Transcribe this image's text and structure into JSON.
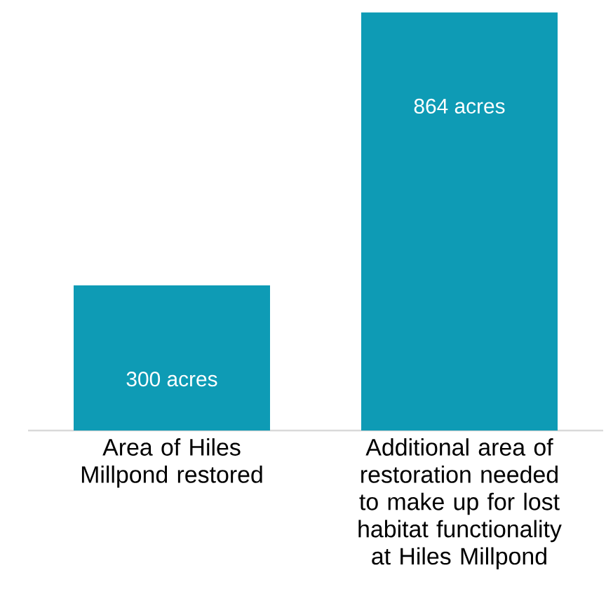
{
  "chart_data": {
    "type": "bar",
    "categories": [
      "Area of Hiles Millpond restored",
      "Additional area of restoration needed to make up for lost habitat functionality at Hiles Millpond"
    ],
    "values": [
      300,
      864
    ],
    "value_labels": [
      "300 acres",
      "864 acres"
    ],
    "color": "#0e9bb5"
  }
}
